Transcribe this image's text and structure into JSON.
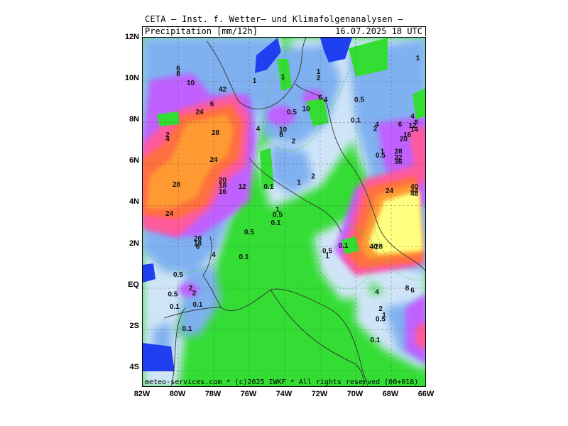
{
  "header": {
    "title": "CETA — Inst. f. Wetter— und Klimafolgenanalysen —",
    "variable": "Precipitation [mm/12h]",
    "datetime": "16.07.2025 18 UTC"
  },
  "footer": "meteo-services.com * (c)2025 IWKF * All rights reserved (00+018)",
  "lat_labels": [
    "12N",
    "10N",
    "8N",
    "6N",
    "4N",
    "2N",
    "EQ",
    "2S",
    "4S"
  ],
  "lon_labels": [
    "82W",
    "80W",
    "78W",
    "76W",
    "74W",
    "72W",
    "70W",
    "68W",
    "66W"
  ],
  "colors": {
    "no_rain": "#33dd33",
    "light": "#cfe5f7",
    "moderate": "#7fb0f0",
    "heavy": "#c060ff",
    "very_heavy": "#ff5a9a",
    "intense": "#ff7040",
    "extreme": "#ff9a30",
    "peak": "#ffff80",
    "sea_blank": "#1f3ff0"
  },
  "value_labels": [
    {
      "t": "6",
      "lon": -80.0,
      "lat": 10.5
    },
    {
      "t": "8",
      "lon": -80.0,
      "lat": 10.25
    },
    {
      "t": "10",
      "lon": -79.3,
      "lat": 9.8
    },
    {
      "t": "42",
      "lon": -77.5,
      "lat": 9.5
    },
    {
      "t": "1",
      "lon": -75.7,
      "lat": 9.9
    },
    {
      "t": "6",
      "lon": -78.1,
      "lat": 8.8
    },
    {
      "t": "24",
      "lon": -78.8,
      "lat": 8.4
    },
    {
      "t": "28",
      "lon": -77.9,
      "lat": 7.4
    },
    {
      "t": "2",
      "lon": -80.6,
      "lat": 7.3
    },
    {
      "t": "4",
      "lon": -80.6,
      "lat": 7.1
    },
    {
      "t": "4",
      "lon": -75.5,
      "lat": 7.6
    },
    {
      "t": "24",
      "lon": -78.0,
      "lat": 6.1
    },
    {
      "t": "28",
      "lon": -80.1,
      "lat": 4.9
    },
    {
      "t": "20",
      "lon": -77.5,
      "lat": 5.1
    },
    {
      "t": "18",
      "lon": -77.5,
      "lat": 4.85
    },
    {
      "t": "16",
      "lon": -77.5,
      "lat": 4.55
    },
    {
      "t": "12",
      "lon": -76.4,
      "lat": 4.8
    },
    {
      "t": "24",
      "lon": -80.5,
      "lat": 3.5
    },
    {
      "t": "28",
      "lon": -78.9,
      "lat": 2.3
    },
    {
      "t": "18",
      "lon": -78.9,
      "lat": 2.05
    },
    {
      "t": "6",
      "lon": -78.9,
      "lat": 1.9
    },
    {
      "t": "4",
      "lon": -78.0,
      "lat": 1.5
    },
    {
      "t": "1",
      "lon": -74.1,
      "lat": 10.1
    },
    {
      "t": "1",
      "lon": -72.1,
      "lat": 10.35
    },
    {
      "t": "2",
      "lon": -72.1,
      "lat": 10.05
    },
    {
      "t": "6",
      "lon": -72.0,
      "lat": 9.1
    },
    {
      "t": "4",
      "lon": -71.7,
      "lat": 9.0
    },
    {
      "t": "10",
      "lon": -72.8,
      "lat": 8.55
    },
    {
      "t": "0.5",
      "lon": -73.6,
      "lat": 8.4
    },
    {
      "t": "0.5",
      "lon": -69.8,
      "lat": 9.0
    },
    {
      "t": "0.1",
      "lon": -70.0,
      "lat": 8.0
    },
    {
      "t": "10",
      "lon": -74.1,
      "lat": 7.55
    },
    {
      "t": "8",
      "lon": -74.2,
      "lat": 7.3
    },
    {
      "t": "2",
      "lon": -73.5,
      "lat": 7.0
    },
    {
      "t": "2",
      "lon": -72.4,
      "lat": 5.3
    },
    {
      "t": "1",
      "lon": -73.2,
      "lat": 5.0
    },
    {
      "t": "0.1",
      "lon": -74.9,
      "lat": 4.8
    },
    {
      "t": "1",
      "lon": -74.4,
      "lat": 3.7
    },
    {
      "t": "0.5",
      "lon": -74.4,
      "lat": 3.45
    },
    {
      "t": "0.1",
      "lon": -74.5,
      "lat": 3.05
    },
    {
      "t": "0.5",
      "lon": -76.0,
      "lat": 2.6
    },
    {
      "t": "0.1",
      "lon": -76.3,
      "lat": 1.4
    },
    {
      "t": "4",
      "lon": -68.8,
      "lat": 7.8
    },
    {
      "t": "2",
      "lon": -68.9,
      "lat": 7.6
    },
    {
      "t": "6",
      "lon": -67.5,
      "lat": 7.8
    },
    {
      "t": "1",
      "lon": -68.5,
      "lat": 6.5
    },
    {
      "t": "0.5",
      "lon": -68.6,
      "lat": 6.3
    },
    {
      "t": "28",
      "lon": -67.6,
      "lat": 6.5
    },
    {
      "t": "32",
      "lon": -67.6,
      "lat": 6.2
    },
    {
      "t": "36",
      "lon": -67.6,
      "lat": 6.0
    },
    {
      "t": "4",
      "lon": -66.8,
      "lat": 8.2
    },
    {
      "t": "8",
      "lon": -66.6,
      "lat": 7.9
    },
    {
      "t": "12",
      "lon": -66.8,
      "lat": 7.75
    },
    {
      "t": "14",
      "lon": -66.7,
      "lat": 7.55
    },
    {
      "t": "16",
      "lon": -67.1,
      "lat": 7.3
    },
    {
      "t": "20",
      "lon": -67.3,
      "lat": 7.1
    },
    {
      "t": "24",
      "lon": -68.1,
      "lat": 4.6
    },
    {
      "t": "40",
      "lon": -66.7,
      "lat": 4.8
    },
    {
      "t": "44",
      "lon": -66.7,
      "lat": 4.6
    },
    {
      "t": "48",
      "lon": -66.7,
      "lat": 4.45
    },
    {
      "t": "0.5",
      "lon": -71.6,
      "lat": 1.7
    },
    {
      "t": "0.1",
      "lon": -70.7,
      "lat": 1.95
    },
    {
      "t": "1",
      "lon": -71.6,
      "lat": 1.45
    },
    {
      "t": "40",
      "lon": -69.0,
      "lat": 1.9
    },
    {
      "t": "28",
      "lon": -68.7,
      "lat": 1.9
    },
    {
      "t": "0.5",
      "lon": -80.0,
      "lat": 0.55
    },
    {
      "t": "2",
      "lon": -79.3,
      "lat": -0.1
    },
    {
      "t": "0.5",
      "lon": -80.3,
      "lat": -0.4
    },
    {
      "t": "2",
      "lon": -79.1,
      "lat": -0.35
    },
    {
      "t": "0.1",
      "lon": -78.9,
      "lat": -0.9
    },
    {
      "t": "0.1",
      "lon": -80.2,
      "lat": -1.0
    },
    {
      "t": "0.1",
      "lon": -79.5,
      "lat": -2.05
    },
    {
      "t": "4",
      "lon": -68.8,
      "lat": -0.3
    },
    {
      "t": "8",
      "lon": -67.1,
      "lat": -0.1
    },
    {
      "t": "6",
      "lon": -66.8,
      "lat": -0.2
    },
    {
      "t": "2",
      "lon": -68.6,
      "lat": -1.1
    },
    {
      "t": "1",
      "lon": -68.4,
      "lat": -1.4
    },
    {
      "t": "0.5",
      "lon": -68.6,
      "lat": -1.6
    },
    {
      "t": "0.1",
      "lon": -68.9,
      "lat": -2.6
    },
    {
      "t": "1",
      "lon": -66.5,
      "lat": 11.0
    }
  ]
}
